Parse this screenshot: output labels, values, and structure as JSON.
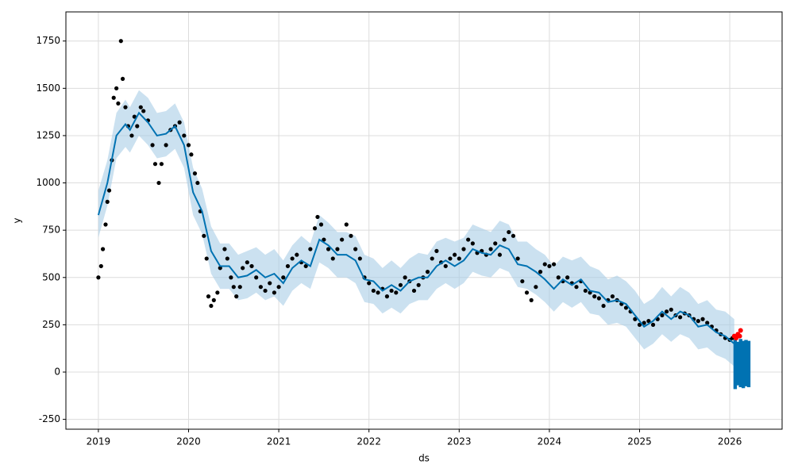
{
  "chart_data": {
    "type": "forecast",
    "x_label": "ds",
    "y_label": "y",
    "xlim": [
      2018.64,
      2026.58
    ],
    "xticks": [
      2019,
      2020,
      2021,
      2022,
      2023,
      2024,
      2025,
      2026
    ],
    "ylim": [
      -302,
      1904
    ],
    "yticks": [
      -250,
      0,
      250,
      500,
      750,
      1000,
      1250,
      1500,
      1750
    ],
    "grid": true,
    "observed": {
      "color": "#000000",
      "x": [
        2019.0,
        2019.03,
        2019.05,
        2019.08,
        2019.1,
        2019.12,
        2019.15,
        2019.17,
        2019.2,
        2019.22,
        2019.25,
        2019.27,
        2019.3,
        2019.33,
        2019.37,
        2019.4,
        2019.43,
        2019.47,
        2019.5,
        2019.55,
        2019.6,
        2019.63,
        2019.67,
        2019.7,
        2019.75,
        2019.8,
        2019.85,
        2019.9,
        2019.95,
        2020.0,
        2020.03,
        2020.07,
        2020.1,
        2020.13,
        2020.17,
        2020.2,
        2020.22,
        2020.25,
        2020.28,
        2020.32,
        2020.35,
        2020.4,
        2020.43,
        2020.47,
        2020.5,
        2020.53,
        2020.57,
        2020.6,
        2020.65,
        2020.7,
        2020.75,
        2020.8,
        2020.85,
        2020.9,
        2020.95,
        2021.0,
        2021.05,
        2021.1,
        2021.15,
        2021.2,
        2021.25,
        2021.3,
        2021.35,
        2021.4,
        2021.43,
        2021.47,
        2021.5,
        2021.55,
        2021.6,
        2021.65,
        2021.7,
        2021.75,
        2021.8,
        2021.85,
        2021.9,
        2021.95,
        2022.0,
        2022.05,
        2022.1,
        2022.15,
        2022.2,
        2022.25,
        2022.3,
        2022.35,
        2022.4,
        2022.45,
        2022.5,
        2022.55,
        2022.6,
        2022.65,
        2022.7,
        2022.75,
        2022.8,
        2022.85,
        2022.9,
        2022.95,
        2023.0,
        2023.05,
        2023.1,
        2023.15,
        2023.2,
        2023.25,
        2023.3,
        2023.35,
        2023.4,
        2023.45,
        2023.5,
        2023.55,
        2023.6,
        2023.65,
        2023.7,
        2023.75,
        2023.8,
        2023.85,
        2023.9,
        2023.95,
        2024.0,
        2024.05,
        2024.1,
        2024.15,
        2024.2,
        2024.25,
        2024.3,
        2024.35,
        2024.4,
        2024.45,
        2024.5,
        2024.55,
        2024.6,
        2024.65,
        2024.7,
        2024.75,
        2024.8,
        2024.85,
        2024.9,
        2024.95,
        2025.0,
        2025.05,
        2025.1,
        2025.15,
        2025.2,
        2025.25,
        2025.3,
        2025.35,
        2025.4,
        2025.45,
        2025.5,
        2025.55,
        2025.6,
        2025.65,
        2025.7,
        2025.75,
        2025.8,
        2025.85,
        2025.9,
        2025.95,
        2026.0,
        2026.03
      ],
      "values": [
        500,
        560,
        650,
        780,
        900,
        960,
        1120,
        1450,
        1500,
        1420,
        1750,
        1550,
        1400,
        1300,
        1250,
        1350,
        1300,
        1400,
        1380,
        1330,
        1200,
        1100,
        1000,
        1100,
        1200,
        1280,
        1300,
        1320,
        1250,
        1200,
        1150,
        1050,
        1000,
        850,
        720,
        600,
        400,
        350,
        380,
        420,
        550,
        650,
        600,
        500,
        450,
        400,
        450,
        550,
        580,
        560,
        500,
        450,
        430,
        470,
        420,
        450,
        500,
        560,
        600,
        620,
        580,
        560,
        650,
        760,
        820,
        780,
        700,
        650,
        600,
        650,
        700,
        780,
        720,
        650,
        600,
        500,
        470,
        430,
        420,
        440,
        400,
        430,
        420,
        460,
        500,
        480,
        430,
        460,
        500,
        530,
        600,
        640,
        580,
        560,
        600,
        620,
        600,
        650,
        700,
        680,
        630,
        640,
        620,
        650,
        680,
        620,
        700,
        740,
        720,
        600,
        480,
        420,
        380,
        450,
        530,
        570,
        560,
        570,
        500,
        480,
        500,
        470,
        450,
        480,
        430,
        420,
        400,
        390,
        350,
        380,
        400,
        380,
        360,
        340,
        320,
        280,
        250,
        260,
        270,
        250,
        280,
        300,
        320,
        330,
        300,
        290,
        310,
        300,
        280,
        270,
        280,
        260,
        240,
        220,
        200,
        180,
        170,
        180
      ]
    },
    "forecast": {
      "color": "#0072b2",
      "band_color": "#a9cde6",
      "x": [
        2019.0,
        2019.1,
        2019.2,
        2019.3,
        2019.35,
        2019.45,
        2019.55,
        2019.65,
        2019.75,
        2019.85,
        2019.95,
        2020.05,
        2020.15,
        2020.25,
        2020.35,
        2020.45,
        2020.55,
        2020.65,
        2020.75,
        2020.85,
        2020.95,
        2021.05,
        2021.15,
        2021.25,
        2021.35,
        2021.45,
        2021.55,
        2021.65,
        2021.75,
        2021.85,
        2021.95,
        2022.05,
        2022.15,
        2022.25,
        2022.35,
        2022.45,
        2022.55,
        2022.65,
        2022.75,
        2022.85,
        2022.95,
        2023.05,
        2023.15,
        2023.25,
        2023.35,
        2023.45,
        2023.55,
        2023.65,
        2023.75,
        2023.85,
        2023.95,
        2024.05,
        2024.15,
        2024.25,
        2024.35,
        2024.45,
        2024.55,
        2024.65,
        2024.75,
        2024.85,
        2024.95,
        2025.05,
        2025.15,
        2025.25,
        2025.35,
        2025.45,
        2025.55,
        2025.65,
        2025.75,
        2025.85,
        2025.95,
        2026.05
      ],
      "values": [
        830,
        1000,
        1250,
        1310,
        1280,
        1370,
        1320,
        1250,
        1260,
        1300,
        1200,
        950,
        850,
        640,
        560,
        560,
        500,
        510,
        540,
        500,
        520,
        470,
        550,
        590,
        560,
        700,
        670,
        620,
        620,
        590,
        490,
        480,
        430,
        460,
        430,
        480,
        500,
        500,
        560,
        590,
        560,
        590,
        650,
        630,
        620,
        670,
        650,
        570,
        560,
        530,
        490,
        440,
        490,
        460,
        490,
        430,
        420,
        370,
        380,
        360,
        300,
        240,
        270,
        320,
        280,
        320,
        300,
        240,
        250,
        210,
        190,
        150
      ],
      "lower": [
        710,
        880,
        1130,
        1190,
        1160,
        1250,
        1200,
        1130,
        1140,
        1180,
        1080,
        830,
        730,
        520,
        440,
        440,
        380,
        390,
        420,
        380,
        400,
        350,
        430,
        470,
        440,
        580,
        550,
        500,
        500,
        470,
        370,
        360,
        310,
        340,
        310,
        360,
        380,
        380,
        440,
        470,
        440,
        470,
        530,
        510,
        500,
        550,
        530,
        450,
        440,
        410,
        370,
        320,
        370,
        340,
        370,
        310,
        300,
        250,
        260,
        240,
        180,
        120,
        150,
        200,
        160,
        200,
        180,
        120,
        130,
        90,
        70,
        30
      ],
      "upper": [
        960,
        1120,
        1370,
        1440,
        1400,
        1490,
        1450,
        1370,
        1380,
        1420,
        1320,
        1080,
        970,
        770,
        680,
        680,
        620,
        640,
        660,
        620,
        650,
        590,
        670,
        720,
        680,
        830,
        790,
        740,
        740,
        720,
        620,
        600,
        550,
        590,
        550,
        600,
        630,
        620,
        690,
        710,
        690,
        710,
        780,
        760,
        740,
        800,
        780,
        690,
        690,
        650,
        620,
        560,
        610,
        590,
        610,
        560,
        540,
        490,
        510,
        480,
        430,
        360,
        390,
        450,
        400,
        450,
        420,
        360,
        380,
        330,
        320,
        280
      ]
    },
    "future": {
      "color": "#0072b2",
      "x": [
        2026.06,
        2026.09,
        2026.12,
        2026.15,
        2026.18,
        2026.21
      ],
      "lower": [
        -90,
        -70,
        -80,
        -85,
        -75,
        -80
      ],
      "upper": [
        170,
        160,
        175,
        165,
        170,
        165
      ]
    },
    "recent": {
      "color": "#ff0000",
      "x": [
        2026.05,
        2026.07,
        2026.09,
        2026.11,
        2026.12
      ],
      "values": [
        190,
        180,
        200,
        190,
        220
      ]
    }
  }
}
